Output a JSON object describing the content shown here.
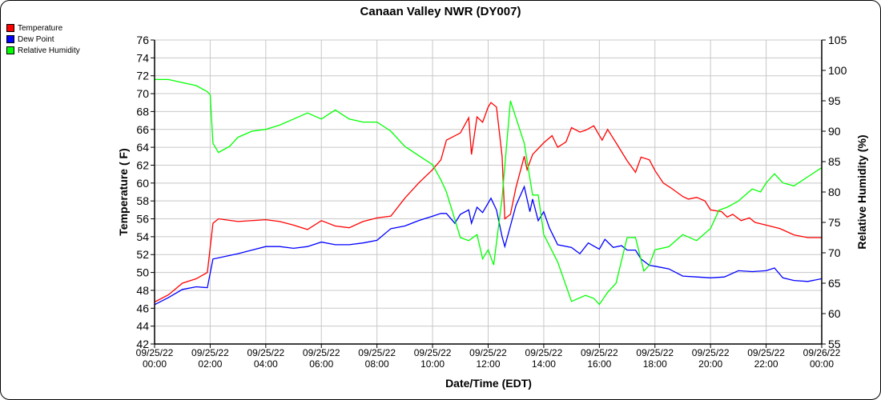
{
  "chart_data": {
    "type": "line",
    "title": "Canaan Valley NWR (DY007)",
    "xlabel": "Date/Time (EDT)",
    "ylabel": "Temperature ( F)",
    "y2label": "Relative Humidity (%)",
    "xlim_hours": [
      0,
      24
    ],
    "ylim": [
      42,
      76
    ],
    "y2lim": [
      55,
      105
    ],
    "grid": true,
    "legend_position": "top-left",
    "yticks": [
      "42",
      "44",
      "46",
      "48",
      "50",
      "52",
      "54",
      "56",
      "58",
      "60",
      "62",
      "64",
      "66",
      "68",
      "70",
      "72",
      "74",
      "76"
    ],
    "y2ticks": [
      "55",
      "60",
      "65",
      "70",
      "75",
      "80",
      "85",
      "90",
      "95",
      "100",
      "105"
    ],
    "xticks": [
      {
        "date": "09/25/22",
        "time": "00:00"
      },
      {
        "date": "09/25/22",
        "time": "02:00"
      },
      {
        "date": "09/25/22",
        "time": "04:00"
      },
      {
        "date": "09/25/22",
        "time": "06:00"
      },
      {
        "date": "09/25/22",
        "time": "08:00"
      },
      {
        "date": "09/25/22",
        "time": "10:00"
      },
      {
        "date": "09/25/22",
        "time": "12:00"
      },
      {
        "date": "09/25/22",
        "time": "14:00"
      },
      {
        "date": "09/25/22",
        "time": "16:00"
      },
      {
        "date": "09/25/22",
        "time": "18:00"
      },
      {
        "date": "09/25/22",
        "time": "20:00"
      },
      {
        "date": "09/25/22",
        "time": "22:00"
      },
      {
        "date": "09/26/22",
        "time": "00:00"
      }
    ],
    "series": [
      {
        "name": "Temperature",
        "color": "#ff0000",
        "axis": "left",
        "x": [
          0,
          0.5,
          1,
          1.5,
          1.9,
          2.1,
          2.3,
          3,
          4,
          4.5,
          5,
          5.5,
          6,
          6.5,
          7,
          7.5,
          8,
          8.5,
          9,
          9.5,
          10,
          10.3,
          10.5,
          11,
          11.3,
          11.4,
          11.6,
          11.8,
          12,
          12.1,
          12.3,
          12.5,
          12.6,
          12.8,
          13,
          13.3,
          13.4,
          13.6,
          14,
          14.3,
          14.5,
          14.8,
          15,
          15.3,
          15.5,
          15.8,
          16.1,
          16.3,
          16.6,
          17,
          17.3,
          17.5,
          17.8,
          18,
          18.3,
          18.6,
          19,
          19.2,
          19.5,
          19.8,
          20,
          20.4,
          20.6,
          20.8,
          21.1,
          21.4,
          21.6,
          22,
          22.5,
          23,
          23.5,
          24
        ],
        "values": [
          46.7,
          47.5,
          48.8,
          49.3,
          50.0,
          55.5,
          56,
          55.7,
          55.9,
          55.7,
          55.3,
          54.8,
          55.8,
          55.2,
          55.0,
          55.7,
          56.1,
          56.3,
          58.3,
          60,
          61.5,
          62.6,
          64.8,
          65.6,
          67.3,
          63.2,
          67.4,
          66.8,
          68.5,
          69,
          68.5,
          63,
          56,
          56.5,
          59.5,
          63,
          61.5,
          63.2,
          64.5,
          65.3,
          64,
          64.6,
          66.2,
          65.7,
          65.9,
          66.4,
          64.8,
          66.0,
          64.5,
          62.5,
          61.2,
          62.9,
          62.6,
          61.4,
          60,
          59.4,
          58.5,
          58.2,
          58.4,
          58,
          57,
          56.8,
          56.2,
          56.5,
          55.8,
          56.1,
          55.6,
          55.3,
          54.9,
          54.2,
          53.9,
          53.9
        ]
      },
      {
        "name": "Dew Point",
        "color": "#0000ff",
        "axis": "left",
        "x": [
          0,
          0.5,
          1,
          1.5,
          1.9,
          2.1,
          3,
          3.5,
          4,
          4.5,
          5,
          5.5,
          6,
          6.5,
          7,
          7.5,
          8,
          8.5,
          9,
          9.5,
          10,
          10.3,
          10.5,
          10.8,
          11,
          11.3,
          11.4,
          11.6,
          11.8,
          12.1,
          12.3,
          12.5,
          12.6,
          13,
          13.3,
          13.5,
          13.6,
          13.8,
          14,
          14.2,
          14.5,
          15,
          15.3,
          15.6,
          16,
          16.2,
          16.5,
          16.8,
          17,
          17.3,
          17.5,
          17.8,
          18,
          18.5,
          19,
          19.5,
          20,
          20.5,
          21,
          21.5,
          22,
          22.3,
          22.6,
          23,
          23.5,
          24
        ],
        "values": [
          46.4,
          47.2,
          48.1,
          48.4,
          48.3,
          51.5,
          52.1,
          52.5,
          52.9,
          52.9,
          52.7,
          52.9,
          53.4,
          53.1,
          53.1,
          53.3,
          53.6,
          54.9,
          55.2,
          55.8,
          56.3,
          56.6,
          56.6,
          55.5,
          56.5,
          57.0,
          55.5,
          57.3,
          56.7,
          58.3,
          57.0,
          54.0,
          52.9,
          57.5,
          59.6,
          56.8,
          58.2,
          55.8,
          56.8,
          55.0,
          53.1,
          52.8,
          52.1,
          53.3,
          52.6,
          53.7,
          52.8,
          53.0,
          52.5,
          52.5,
          51.5,
          50.8,
          50.7,
          50.4,
          49.6,
          49.5,
          49.4,
          49.5,
          50.2,
          50.1,
          50.2,
          50.5,
          49.4,
          49.1,
          49.0,
          49.3
        ]
      },
      {
        "name": "Relative Humidity",
        "color": "#00ff00",
        "axis": "right",
        "x": [
          0,
          0.5,
          1,
          1.5,
          1.9,
          2,
          2.1,
          2.3,
          2.7,
          3,
          3.5,
          4,
          4.5,
          5,
          5.5,
          6,
          6.5,
          7,
          7.5,
          8,
          8.5,
          9,
          9.5,
          10,
          10.3,
          10.5,
          11,
          11.3,
          11.6,
          11.8,
          12,
          12.2,
          12.5,
          12.8,
          13.3,
          13.6,
          13.8,
          14,
          14.5,
          15,
          15.5,
          15.8,
          16,
          16.3,
          16.6,
          17,
          17.3,
          17.6,
          17.8,
          18,
          18.5,
          19,
          19.5,
          20,
          20.3,
          20.6,
          21,
          21.5,
          21.8,
          22,
          22.3,
          22.6,
          23,
          23.5,
          24
        ],
        "values": [
          98.5,
          98.5,
          98.0,
          97.5,
          96.5,
          96,
          88,
          86.5,
          87.5,
          89,
          90,
          90.3,
          91,
          92,
          93,
          92,
          93.5,
          92,
          91.5,
          91.5,
          90,
          87.5,
          86,
          84.5,
          82,
          80,
          72.5,
          72,
          73,
          69,
          70.5,
          68,
          79,
          95,
          88,
          79.5,
          79.5,
          73,
          68.5,
          62,
          63,
          62.5,
          61.5,
          63.5,
          65,
          72.5,
          72.5,
          67,
          68,
          70.5,
          71,
          73,
          72,
          74,
          77,
          77.5,
          78.5,
          80.5,
          80,
          81.5,
          83,
          81.5,
          81,
          82.5,
          84
        ]
      }
    ]
  }
}
